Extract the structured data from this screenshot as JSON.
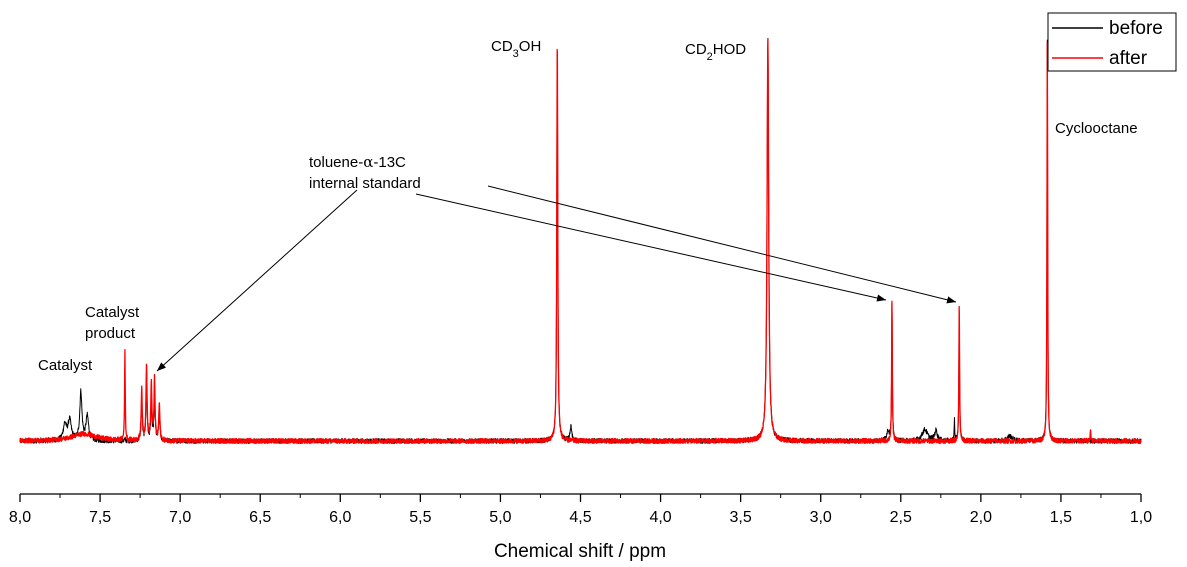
{
  "chart_data": {
    "type": "line",
    "title": "",
    "xlabel": "Chemical shift / ppm",
    "ylabel": "",
    "xlim": [
      8.0,
      1.0
    ],
    "x_reversed": true,
    "ylim": [
      0,
      1.0
    ],
    "grid": false,
    "legend_position": "top-right",
    "x_ticks": [
      "8,0",
      "7,5",
      "7,0",
      "6,5",
      "6,0",
      "5,5",
      "5,0",
      "4,5",
      "4,0",
      "3,5",
      "3,0",
      "2,5",
      "2,0",
      "1,5",
      "1,0"
    ],
    "x_tick_values": [
      8.0,
      7.5,
      7.0,
      6.5,
      6.0,
      5.5,
      5.0,
      4.5,
      4.0,
      3.5,
      3.0,
      2.5,
      2.0,
      1.5,
      1.0
    ],
    "series": [
      {
        "name": "before",
        "color": "#000000",
        "peaks": [
          {
            "x": 7.72,
            "h": 0.04,
            "w": 0.012
          },
          {
            "x": 7.69,
            "h": 0.05,
            "w": 0.012
          },
          {
            "x": 7.62,
            "h": 0.12,
            "w": 0.008
          },
          {
            "x": 7.58,
            "h": 0.06,
            "w": 0.01
          },
          {
            "x": 7.345,
            "h": 0.005,
            "w": 0.003
          },
          {
            "x": 7.24,
            "h": 0.1,
            "w": 0.004
          },
          {
            "x": 7.21,
            "h": 0.16,
            "w": 0.004
          },
          {
            "x": 7.18,
            "h": 0.1,
            "w": 0.004
          },
          {
            "x": 7.16,
            "h": 0.12,
            "w": 0.004
          },
          {
            "x": 7.13,
            "h": 0.08,
            "w": 0.004
          },
          {
            "x": 4.645,
            "h": 1.0,
            "w": 0.0035
          },
          {
            "x": 4.56,
            "h": 0.035,
            "w": 0.006
          },
          {
            "x": 3.33,
            "h": 1.0,
            "w": 0.006
          },
          {
            "x": 2.58,
            "h": 0.025,
            "w": 0.01
          },
          {
            "x": 2.555,
            "h": 0.34,
            "w": 0.0025
          },
          {
            "x": 2.35,
            "h": 0.028,
            "w": 0.02
          },
          {
            "x": 2.28,
            "h": 0.025,
            "w": 0.01
          },
          {
            "x": 2.165,
            "h": 0.055,
            "w": 0.002
          },
          {
            "x": 2.135,
            "h": 0.33,
            "w": 0.0025
          },
          {
            "x": 1.82,
            "h": 0.012,
            "w": 0.02
          },
          {
            "x": 1.585,
            "h": 1.0,
            "w": 0.0025
          }
        ]
      },
      {
        "name": "after",
        "color": "#ff0000",
        "peaks": [
          {
            "x": 7.6,
            "h": 0.018,
            "w": 0.09
          },
          {
            "x": 7.345,
            "h": 0.22,
            "w": 0.0025
          },
          {
            "x": 7.24,
            "h": 0.13,
            "w": 0.004
          },
          {
            "x": 7.21,
            "h": 0.19,
            "w": 0.004
          },
          {
            "x": 7.18,
            "h": 0.14,
            "w": 0.004
          },
          {
            "x": 7.16,
            "h": 0.15,
            "w": 0.004
          },
          {
            "x": 7.13,
            "h": 0.09,
            "w": 0.004
          },
          {
            "x": 4.645,
            "h": 1.0,
            "w": 0.0035
          },
          {
            "x": 3.33,
            "h": 1.0,
            "w": 0.006
          },
          {
            "x": 2.555,
            "h": 0.35,
            "w": 0.0025
          },
          {
            "x": 2.135,
            "h": 0.34,
            "w": 0.0025
          },
          {
            "x": 1.585,
            "h": 1.0,
            "w": 0.0025
          },
          {
            "x": 1.315,
            "h": 0.03,
            "w": 0.002
          }
        ]
      }
    ],
    "annotations": [
      {
        "id": "cd3oh",
        "text_parts": [
          {
            "t": "CD"
          },
          {
            "t": "3",
            "sub": true
          },
          {
            "t": "OH"
          }
        ]
      },
      {
        "id": "cd2hod",
        "text_parts": [
          {
            "t": "CD"
          },
          {
            "t": "2",
            "sub": true
          },
          {
            "t": "HOD"
          }
        ]
      },
      {
        "id": "cyclooctane",
        "text": "Cyclooctane"
      },
      {
        "id": "toluene-line1",
        "text_parts": [
          {
            "t": "toluene-"
          },
          {
            "t": "α",
            "greek": true
          },
          {
            "t": "-13C"
          }
        ]
      },
      {
        "id": "toluene-line2",
        "text": "internal standard"
      },
      {
        "id": "catalyst-product-line1",
        "text": "Catalyst"
      },
      {
        "id": "catalyst-product-line2",
        "text": "product"
      },
      {
        "id": "catalyst",
        "text": "Catalyst"
      }
    ]
  }
}
